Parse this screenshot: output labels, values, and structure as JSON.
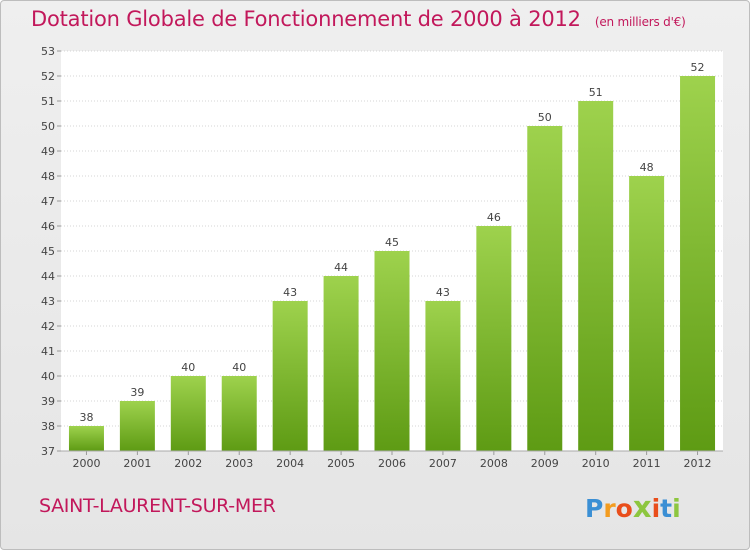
{
  "title": "Dotation Globale de Fonctionnement de 2000 à 2012",
  "unit_note": "(en milliers d'€)",
  "place_name": "SAINT-LAURENT-SUR-MER",
  "logo": {
    "letters": [
      "P",
      "r",
      "o",
      "x",
      "i",
      "t",
      "i"
    ],
    "colors": [
      "#3b8fd4",
      "#f39c1f",
      "#e94e1b",
      "#8dc63f",
      "#e94e1b",
      "#3b8fd4",
      "#8dc63f"
    ]
  },
  "colors": {
    "title": "#c2185b",
    "bar_top": "#9ed24d",
    "bar_bottom": "#5e9b14"
  },
  "chart_data": {
    "type": "bar",
    "categories": [
      "2000",
      "2001",
      "2002",
      "2003",
      "2004",
      "2005",
      "2006",
      "2007",
      "2008",
      "2009",
      "2010",
      "2011",
      "2012"
    ],
    "values": [
      38,
      39,
      40,
      40,
      43,
      44,
      45,
      43,
      46,
      50,
      51,
      48,
      52
    ],
    "data_labels": [
      "38",
      "39",
      "40",
      "40",
      "43",
      "44",
      "45",
      "43",
      "46",
      "50",
      "51",
      "48",
      "52"
    ],
    "title": "Dotation Globale de Fonctionnement de 2000 à 2012",
    "ylim": [
      37,
      53
    ],
    "yticks": [
      37,
      38,
      39,
      40,
      41,
      42,
      43,
      44,
      45,
      46,
      47,
      48,
      49,
      50,
      51,
      52,
      53
    ],
    "grid": true
  }
}
